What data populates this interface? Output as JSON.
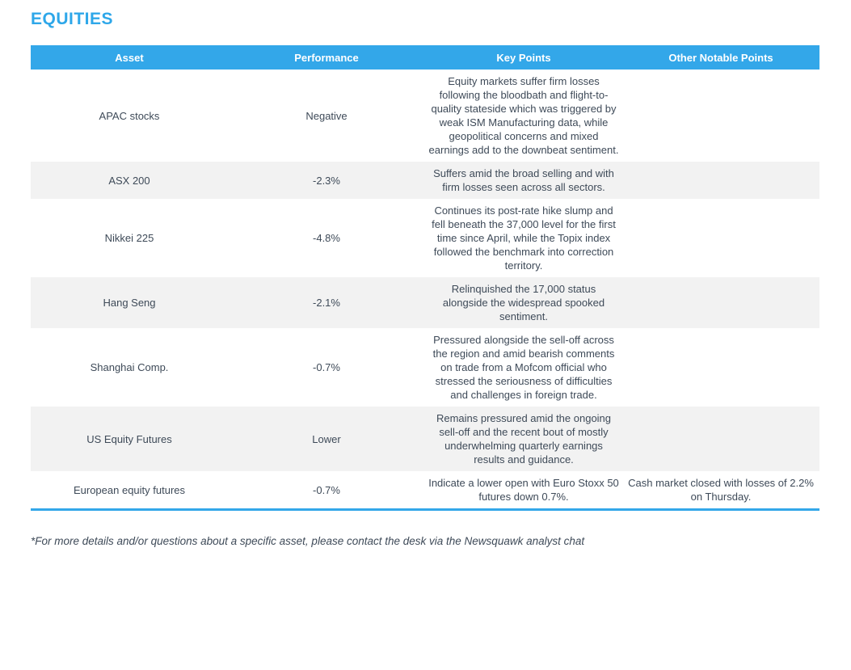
{
  "page": {
    "title": "EQUITIES",
    "footnote": "*For more details and/or questions about a specific asset, please contact the desk via the Newsquawk analyst chat",
    "colors": {
      "accent_blue": "#33a7e9",
      "title_blue": "#2ea7e9",
      "stripe_gray": "#f2f2f2",
      "text_slate": "#3e4a58",
      "header_text": "#ffffff"
    }
  },
  "table": {
    "columns": {
      "asset": "Asset",
      "performance": "Performance",
      "key_points": "Key Points",
      "other_notable_points": "Other Notable Points"
    },
    "rows": [
      {
        "asset": "APAC stocks",
        "performance": "Negative",
        "key_points": "Equity markets suffer firm losses following the bloodbath and flight-to-quality stateside which was triggered by weak ISM Manufacturing data, while geopolitical concerns and mixed earnings add to the downbeat sentiment.",
        "other_notable_points": ""
      },
      {
        "asset": "ASX 200",
        "performance": "-2.3%",
        "key_points": "Suffers amid the broad selling and with firm losses seen across all sectors.",
        "other_notable_points": ""
      },
      {
        "asset": "Nikkei 225",
        "performance": "-4.8%",
        "key_points": "Continues its post-rate hike slump and fell beneath the 37,000 level for the first time since April, while the Topix index followed the benchmark into correction territory.",
        "other_notable_points": ""
      },
      {
        "asset": "Hang Seng",
        "performance": "-2.1%",
        "key_points": "Relinquished the 17,000 status alongside the widespread spooked sentiment.",
        "other_notable_points": ""
      },
      {
        "asset": "Shanghai Comp.",
        "performance": "-0.7%",
        "key_points": "Pressured alongside the sell-off across the region and amid bearish comments on trade from a Mofcom official who stressed the seriousness of difficulties and challenges in foreign trade.",
        "other_notable_points": ""
      },
      {
        "asset": "US Equity Futures",
        "performance": "Lower",
        "key_points": "Remains pressured amid the ongoing sell-off and the recent bout of mostly underwhelming quarterly earnings results and guidance.",
        "other_notable_points": ""
      },
      {
        "asset": "European equity futures",
        "performance": "-0.7%",
        "key_points": "Indicate a lower open with Euro Stoxx 50 futures down 0.7%.",
        "other_notable_points": "Cash market closed with losses of 2.2% on Thursday."
      }
    ]
  }
}
